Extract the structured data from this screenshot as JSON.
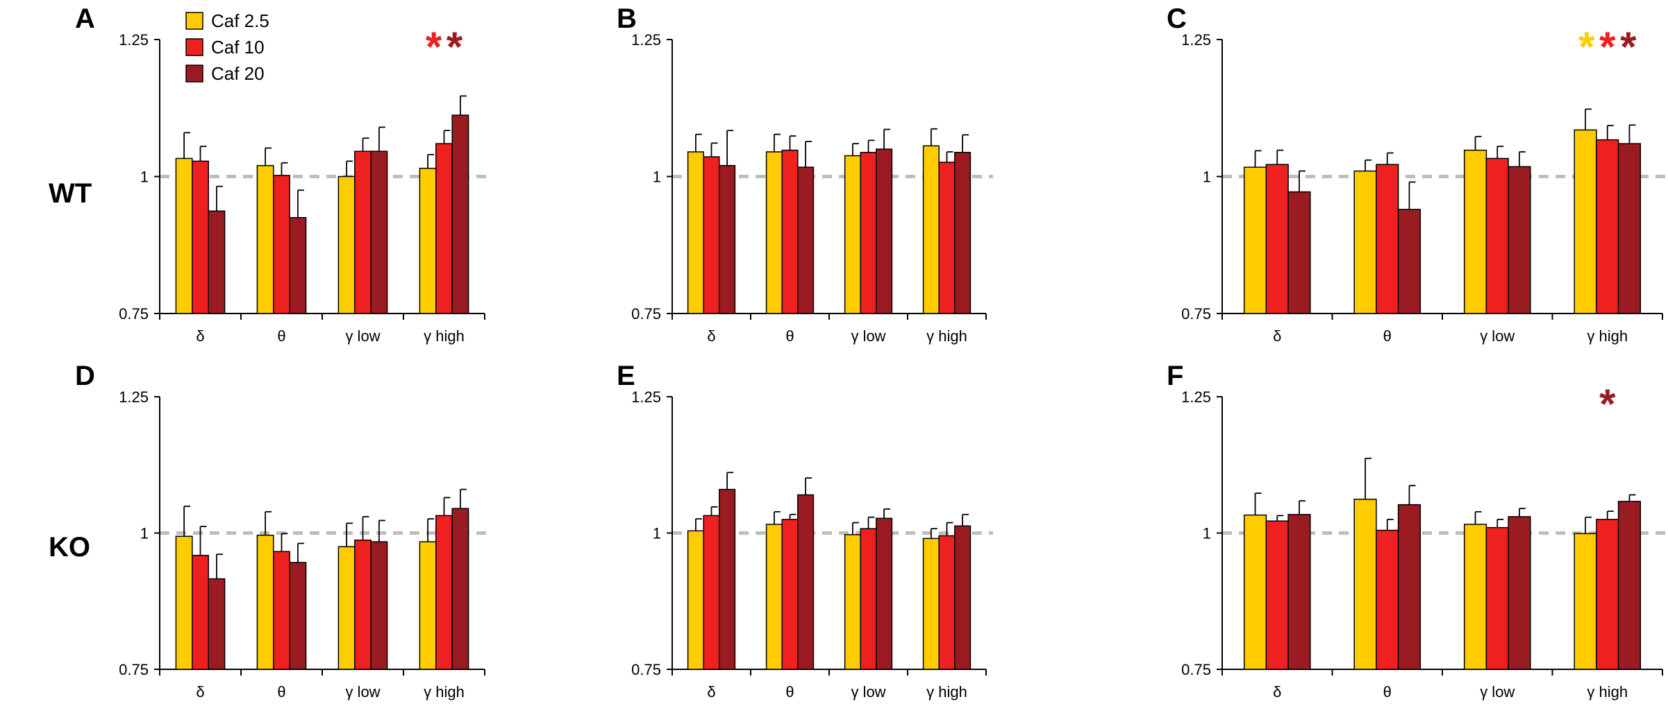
{
  "chart_data": {
    "type": "bar",
    "categories": [
      "δ",
      "θ",
      "γ low",
      "γ high"
    ],
    "ylim": [
      0.75,
      1.25
    ],
    "yticks": [
      "0.75",
      "1",
      "1.25"
    ],
    "reference_line": 1,
    "row_labels": [
      "WT",
      "KO"
    ],
    "legend": {
      "position": "top-left",
      "entries": [
        {
          "name": "Caf 2.5",
          "color": "#FFCC00"
        },
        {
          "name": "Caf 10",
          "color": "#EE2020"
        },
        {
          "name": "Caf 20",
          "color": "#9B1B22"
        }
      ]
    },
    "series_colors": [
      "#FFCC00",
      "#EE2020",
      "#9B1B22"
    ],
    "panels": [
      {
        "letter": "A",
        "row": 0,
        "col": 0,
        "series": [
          {
            "name": "Caf 2.5",
            "values": [
              1.033,
              1.02,
              1.0,
              1.015
            ],
            "errors": [
              0.047,
              0.032,
              0.028,
              0.025
            ]
          },
          {
            "name": "Caf 10",
            "values": [
              1.028,
              1.002,
              1.046,
              1.06
            ],
            "errors": [
              0.027,
              0.023,
              0.024,
              0.024
            ]
          },
          {
            "name": "Caf 20",
            "values": [
              0.937,
              0.925,
              1.046,
              1.112
            ],
            "errors": [
              0.045,
              0.05,
              0.044,
              0.035
            ]
          }
        ],
        "significance": [
          {
            "symbol": "*",
            "color": "#EE2020"
          },
          {
            "symbol": "*",
            "color": "#9B1B22"
          }
        ]
      },
      {
        "letter": "B",
        "row": 0,
        "col": 1,
        "series": [
          {
            "name": "Caf 2.5",
            "values": [
              1.045,
              1.045,
              1.038,
              1.056
            ],
            "errors": [
              0.032,
              0.032,
              0.022,
              0.031
            ]
          },
          {
            "name": "Caf 10",
            "values": [
              1.036,
              1.048,
              1.044,
              1.026
            ],
            "errors": [
              0.025,
              0.026,
              0.022,
              0.019
            ]
          },
          {
            "name": "Caf 20",
            "values": [
              1.02,
              1.017,
              1.05,
              1.044
            ],
            "errors": [
              0.064,
              0.047,
              0.036,
              0.032
            ]
          }
        ],
        "significance": []
      },
      {
        "letter": "C",
        "row": 0,
        "col": 2,
        "series": [
          {
            "name": "Caf 2.5",
            "values": [
              1.017,
              1.01,
              1.048,
              1.085
            ],
            "errors": [
              0.03,
              0.02,
              0.025,
              0.038
            ]
          },
          {
            "name": "Caf 10",
            "values": [
              1.022,
              1.022,
              1.033,
              1.067
            ],
            "errors": [
              0.026,
              0.021,
              0.022,
              0.026
            ]
          },
          {
            "name": "Caf 20",
            "values": [
              0.972,
              0.94,
              1.018,
              1.06
            ],
            "errors": [
              0.038,
              0.05,
              0.027,
              0.034
            ]
          }
        ],
        "significance": [
          {
            "symbol": "*",
            "color": "#FFCC00"
          },
          {
            "symbol": "*",
            "color": "#EE2020"
          },
          {
            "symbol": "*",
            "color": "#9B1B22"
          }
        ]
      },
      {
        "letter": "D",
        "row": 1,
        "col": 0,
        "series": [
          {
            "name": "Caf 2.5",
            "values": [
              0.994,
              0.996,
              0.975,
              0.984
            ],
            "errors": [
              0.055,
              0.043,
              0.043,
              0.042
            ]
          },
          {
            "name": "Caf 10",
            "values": [
              0.959,
              0.966,
              0.987,
              1.032
            ],
            "errors": [
              0.053,
              0.033,
              0.043,
              0.033
            ]
          },
          {
            "name": "Caf 20",
            "values": [
              0.916,
              0.946,
              0.984,
              1.045
            ],
            "errors": [
              0.045,
              0.035,
              0.039,
              0.035
            ]
          }
        ],
        "significance": []
      },
      {
        "letter": "E",
        "row": 1,
        "col": 1,
        "series": [
          {
            "name": "Caf 2.5",
            "values": [
              1.004,
              1.016,
              0.997,
              0.99
            ],
            "errors": [
              0.022,
              0.023,
              0.022,
              0.018
            ]
          },
          {
            "name": "Caf 10",
            "values": [
              1.032,
              1.025,
              1.008,
              0.995
            ],
            "errors": [
              0.016,
              0.009,
              0.021,
              0.024
            ]
          },
          {
            "name": "Caf 20",
            "values": [
              1.08,
              1.07,
              1.027,
              1.013
            ],
            "errors": [
              0.031,
              0.031,
              0.017,
              0.021
            ]
          }
        ],
        "significance": []
      },
      {
        "letter": "F",
        "row": 1,
        "col": 2,
        "series": [
          {
            "name": "Caf 2.5",
            "values": [
              1.033,
              1.062,
              1.016,
              0.999
            ],
            "errors": [
              0.04,
              0.075,
              0.023,
              0.03
            ]
          },
          {
            "name": "Caf 10",
            "values": [
              1.022,
              1.005,
              1.01,
              1.025
            ],
            "errors": [
              0.01,
              0.02,
              0.015,
              0.015
            ]
          },
          {
            "name": "Caf 20",
            "values": [
              1.034,
              1.052,
              1.03,
              1.058
            ],
            "errors": [
              0.025,
              0.035,
              0.015,
              0.012
            ]
          }
        ],
        "significance": [
          {
            "symbol": "*",
            "color": "#9B1B22"
          }
        ]
      }
    ]
  }
}
